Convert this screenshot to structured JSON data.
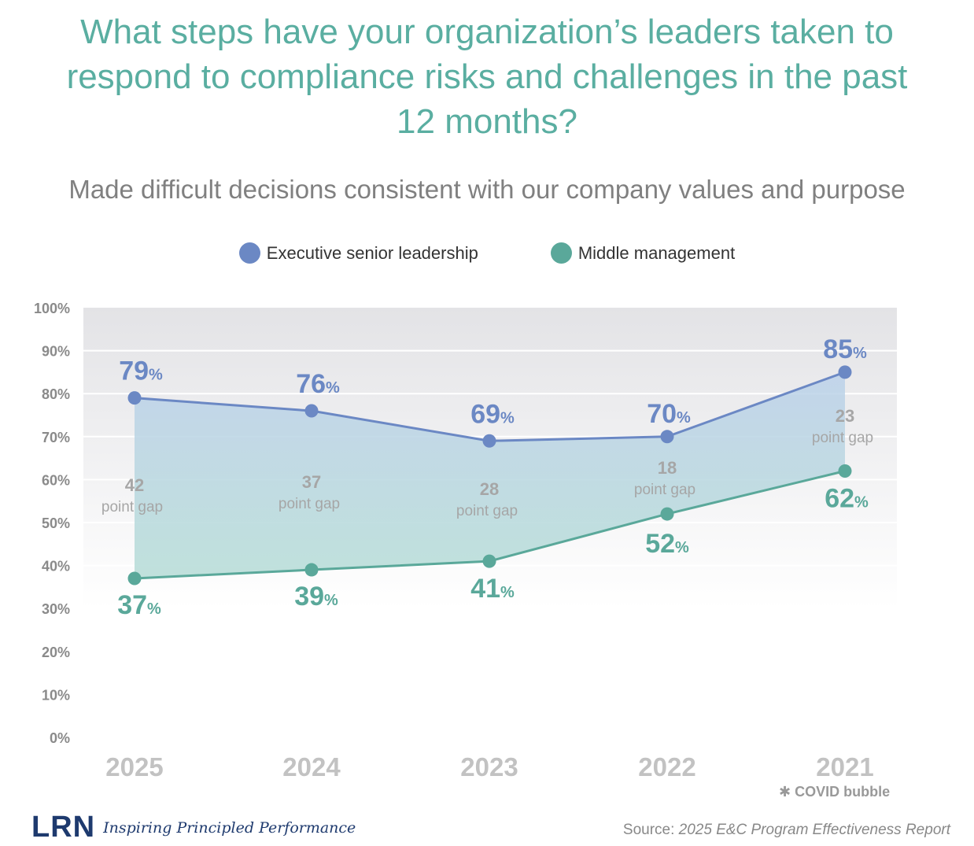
{
  "title": "What steps have your organization’s leaders taken to respond to compliance risks and challenges in the past 12 months?",
  "subtitle": "Made difficult decisions consistent with our company values and purpose",
  "colors": {
    "executive": "#6b88c4",
    "middle": "#5aa89a",
    "gap_text": "#a6a6a6",
    "axis_text": "#8a8a8a",
    "title": "#5aaea1"
  },
  "chart_data": {
    "type": "line",
    "title": "Made difficult decisions consistent with our company values and purpose",
    "categories": [
      "2025",
      "2024",
      "2023",
      "2022",
      "2021"
    ],
    "y_ticks": [
      "100%",
      "90%",
      "80%",
      "70%",
      "60%",
      "50%",
      "40%",
      "30%",
      "20%",
      "10%",
      "0%"
    ],
    "ylim": [
      0,
      100
    ],
    "series": [
      {
        "name": "Executive senior leadership",
        "values": [
          79,
          76,
          69,
          70,
          85
        ]
      },
      {
        "name": "Middle management",
        "values": [
          37,
          39,
          41,
          52,
          62
        ]
      }
    ],
    "gaps": [
      {
        "value": "42",
        "label": "point gap"
      },
      {
        "value": "37",
        "label": "point gap"
      },
      {
        "value": "28",
        "label": "point gap"
      },
      {
        "value": "18",
        "label": "point gap"
      },
      {
        "value": "23",
        "label": "point gap"
      }
    ],
    "percent_sign": "%",
    "legend_position": "top-center"
  },
  "footnote": "COVID bubble",
  "footnote_mark": "✱",
  "brand": {
    "logo": "LRN",
    "tagline": "Inspiring Principled Performance"
  },
  "source": {
    "prefix": "Source: ",
    "title": "2025 E&C Program Effectiveness Report"
  }
}
